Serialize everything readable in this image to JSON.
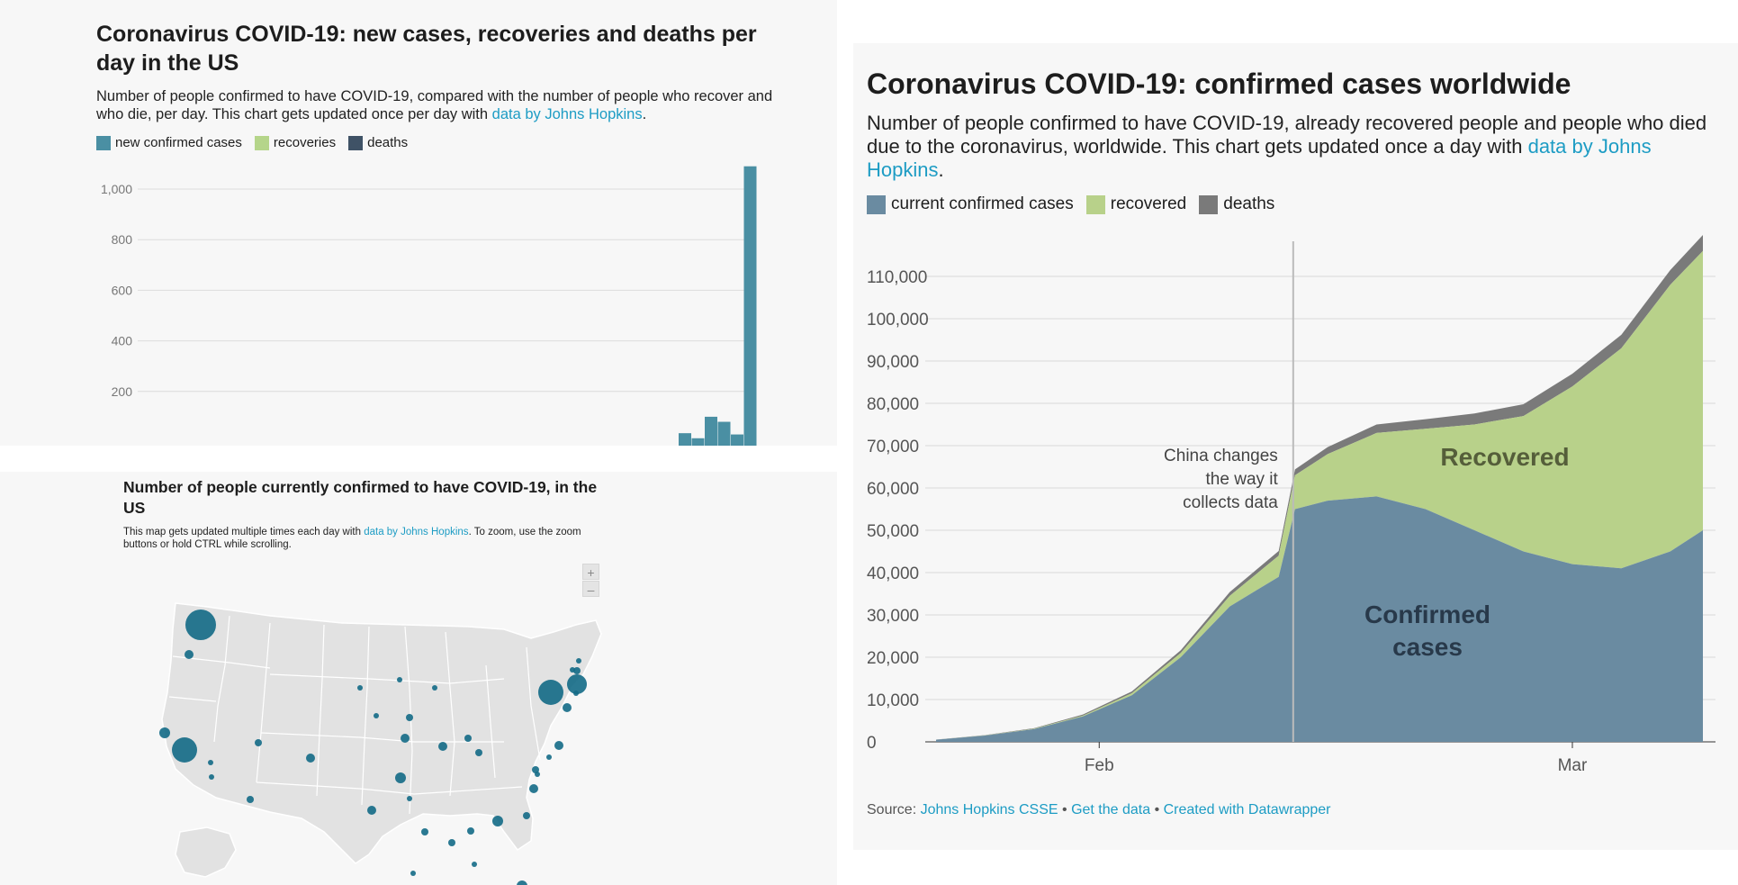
{
  "us_bars": {
    "title": "Coronavirus COVID-19: new cases, recoveries and deaths per day in the US",
    "description": "Number of people confirmed to have COVID-19, compared with the number of people who recover and who die, per day. This chart gets updated once per day with ",
    "description_link": "data by Johns Hopkins",
    "description_end": ".",
    "legend": [
      {
        "label": "new confirmed cases",
        "color": "#4a8fa3"
      },
      {
        "label": "recoveries",
        "color": "#b5d58a"
      },
      {
        "label": "deaths",
        "color": "#3f5266"
      }
    ]
  },
  "us_map": {
    "title": "Number of people currently confirmed to have COVID-19, in the US",
    "description": "This map gets updated multiple times each day with ",
    "description_link": "data by Johns Hopkins",
    "description_end": ". To zoom, use the zoom buttons or hold CTRL while scrolling.",
    "zoom_in": "+",
    "zoom_out": "–",
    "bubble_color": "#136a86",
    "land_color": "#e2e2e2"
  },
  "world": {
    "title": "Coronavirus COVID-19: confirmed cases worldwide",
    "description": "Number of people confirmed to have COVID-19, already recovered people and people who died due to the coronavirus, worldwide. This chart gets updated once a day with ",
    "description_link": "data by Johns Hopkins",
    "description_end": ".",
    "legend": [
      {
        "label": "current confirmed cases",
        "color": "#6a8ba1"
      },
      {
        "label": "recovered",
        "color": "#b8d18a"
      },
      {
        "label": "deaths",
        "color": "#7a7a7a"
      }
    ],
    "source_label": "Source: ",
    "source_link": "Johns Hopkins CSSE",
    "sep1": " • ",
    "get_data": "Get the data",
    "sep2": " • ",
    "created_with": "Created with Datawrapper"
  },
  "chart_data": [
    {
      "type": "bar",
      "title": "Coronavirus COVID-19: new cases, recoveries and deaths per day in the US",
      "y_ticks": [
        200,
        400,
        600,
        800,
        1000
      ],
      "ylim": [
        0,
        1100
      ],
      "grid": true,
      "legend_position": "top-left",
      "series": [
        {
          "name": "new confirmed cases",
          "values": [
            35,
            15,
            100,
            80,
            30,
            1090
          ]
        }
      ]
    },
    {
      "type": "area",
      "title": "Coronavirus COVID-19: confirmed cases worldwide",
      "x_ticks": [
        "Feb",
        "Mar"
      ],
      "y_ticks": [
        0,
        10000,
        20000,
        30000,
        40000,
        50000,
        60000,
        70000,
        80000,
        90000,
        100000,
        110000
      ],
      "ylim": [
        0,
        120000
      ],
      "grid": true,
      "legend_position": "top-left",
      "x": [
        "2020-01-22",
        "2020-01-25",
        "2020-01-28",
        "2020-01-31",
        "2020-02-03",
        "2020-02-06",
        "2020-02-09",
        "2020-02-12",
        "2020-02-13",
        "2020-02-15",
        "2020-02-18",
        "2020-02-21",
        "2020-02-24",
        "2020-02-27",
        "2020-03-01",
        "2020-03-04",
        "2020-03-07",
        "2020-03-09"
      ],
      "series": [
        {
          "name": "current confirmed cases",
          "values": [
            500,
            1500,
            3000,
            6000,
            11000,
            20000,
            32000,
            39000,
            55000,
            57000,
            58000,
            55000,
            50000,
            45000,
            42000,
            41000,
            45000,
            50000
          ]
        },
        {
          "name": "recovered",
          "values": [
            0,
            50,
            100,
            200,
            500,
            1000,
            2500,
            5000,
            8000,
            11000,
            15000,
            19000,
            25000,
            32000,
            42000,
            52000,
            63000,
            66000
          ]
        },
        {
          "name": "deaths",
          "values": [
            20,
            50,
            130,
            250,
            420,
            640,
            900,
            1100,
            1400,
            1650,
            2000,
            2250,
            2600,
            2800,
            3000,
            3200,
            3500,
            3800
          ]
        }
      ],
      "annotations": [
        "China changes",
        "the way it",
        "collects data",
        "Recovered",
        "Confirmed",
        "cases"
      ]
    }
  ]
}
